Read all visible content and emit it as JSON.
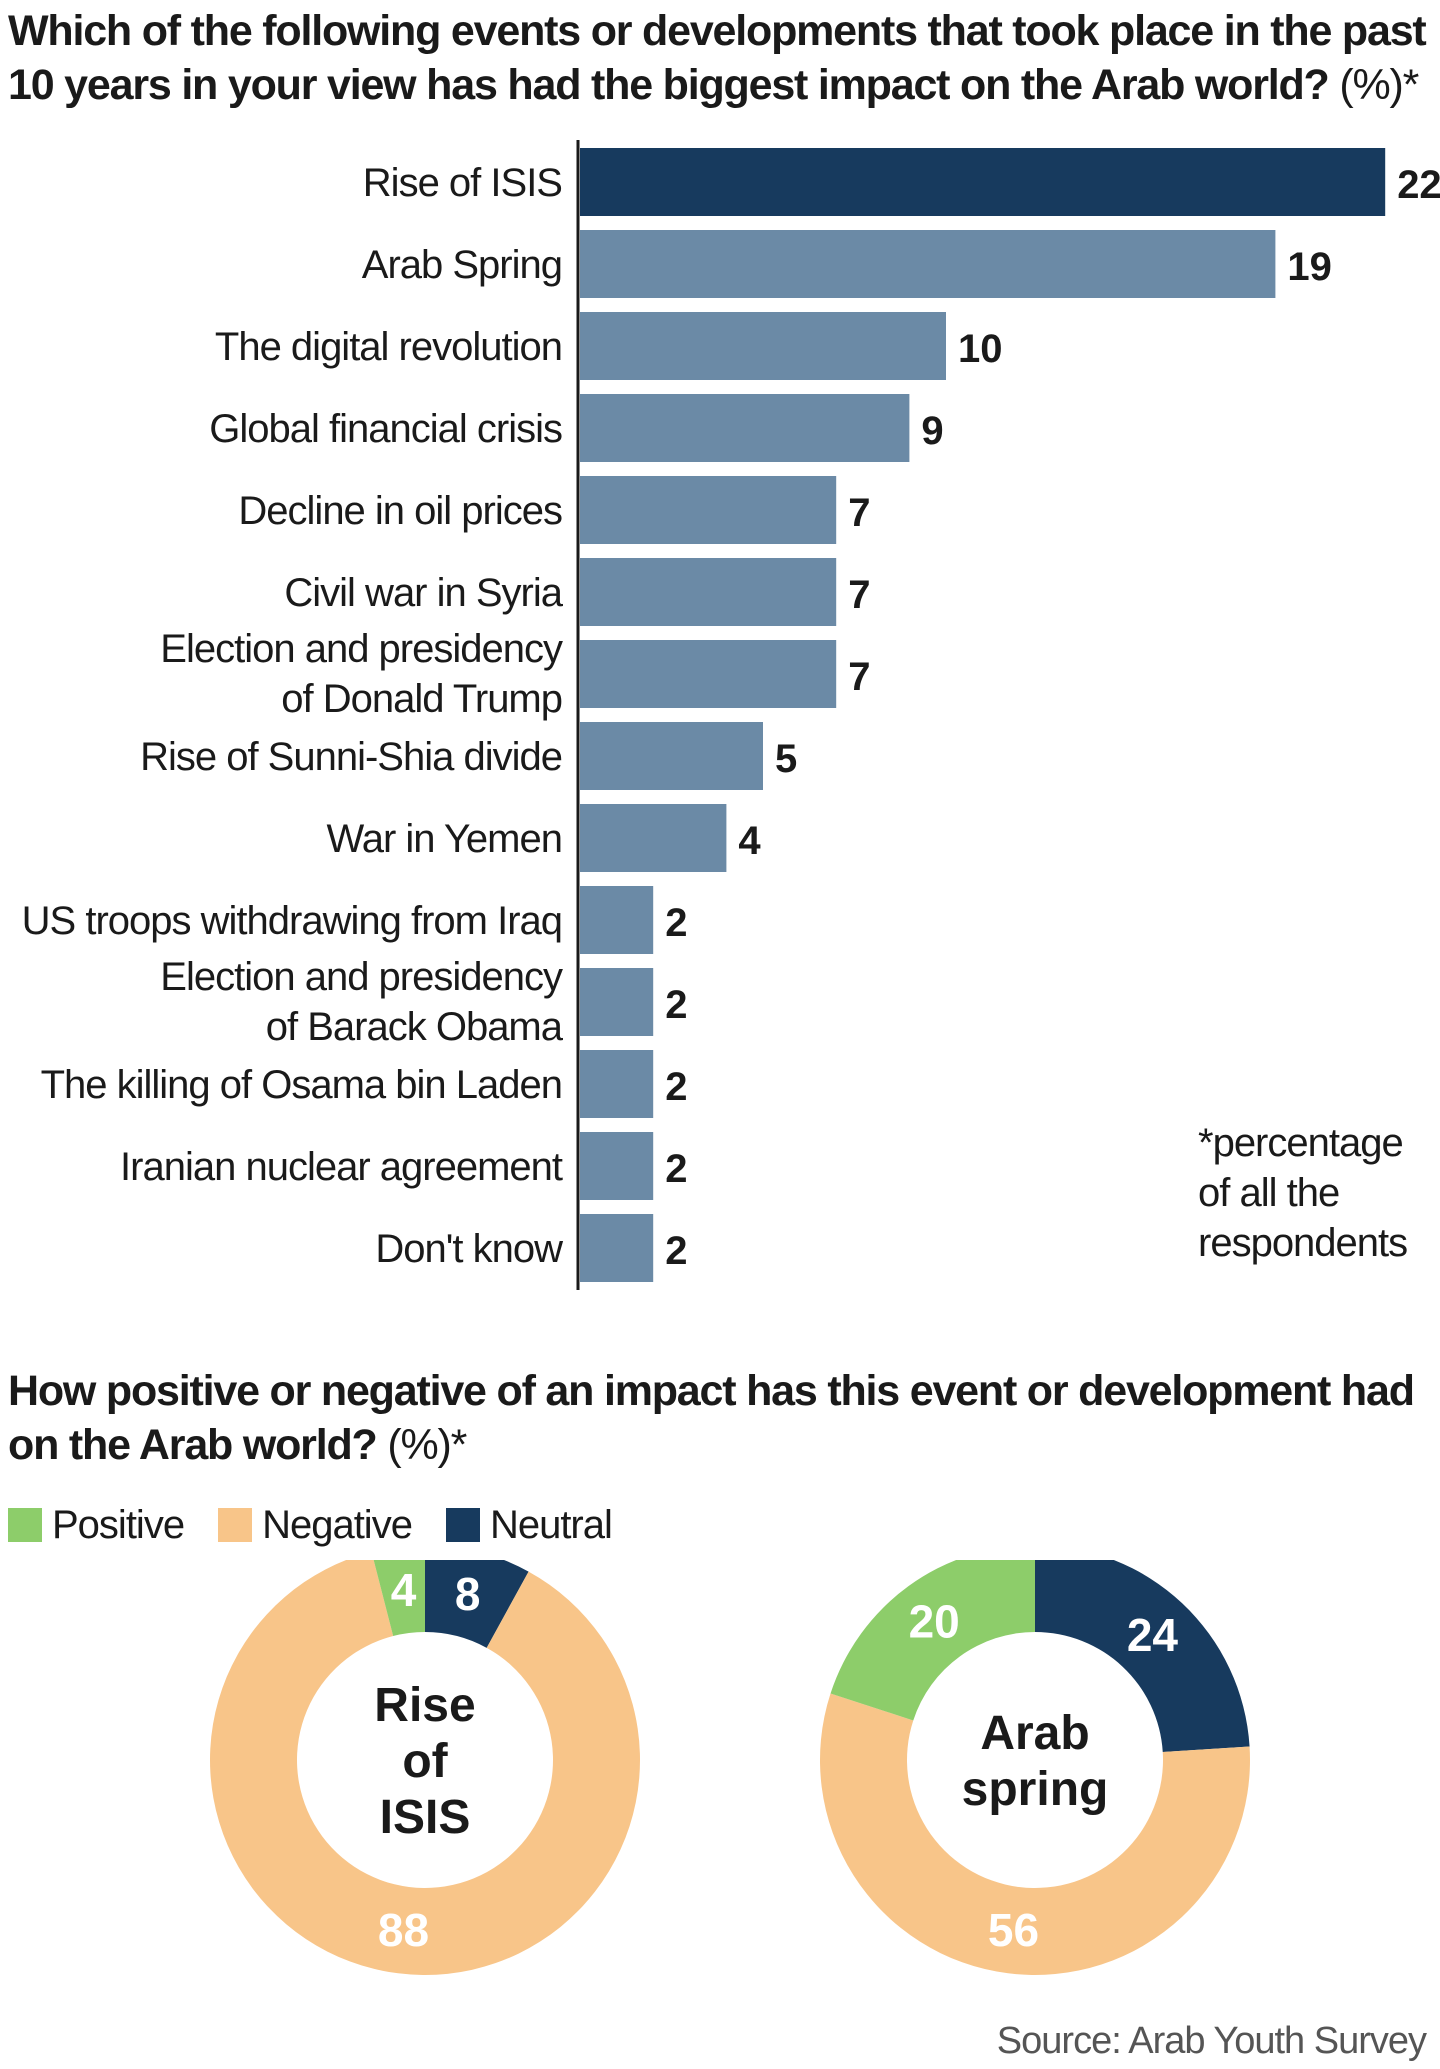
{
  "chart_data": [
    {
      "type": "bar",
      "orientation": "horizontal",
      "title": "Which of the following events or developments that took place in the past 10 years in your view has had the biggest impact on the Arab world?",
      "title_suffix": "(%)*",
      "categories": [
        [
          "Rise of ISIS"
        ],
        [
          "Arab Spring"
        ],
        [
          "The digital revolution"
        ],
        [
          "Global financial crisis"
        ],
        [
          "Decline in oil prices"
        ],
        [
          "Civil war in Syria"
        ],
        [
          "Election and presidency",
          "of Donald Trump"
        ],
        [
          "Rise of Sunni-Shia divide"
        ],
        [
          "War in Yemen"
        ],
        [
          "US troops withdrawing from Iraq"
        ],
        [
          "Election and presidency",
          "of Barack Obama"
        ],
        [
          "The killing of Osama bin Laden"
        ],
        [
          "Iranian nuclear agreement"
        ],
        [
          "Don't know"
        ]
      ],
      "values": [
        22,
        19,
        10,
        9,
        7,
        7,
        7,
        5,
        4,
        2,
        2,
        2,
        2,
        2
      ],
      "highlight_color": "#173a5e",
      "bar_color": "#6b8aa6",
      "footnote": "*percentage\nof all the\nrespondents"
    },
    {
      "type": "pie",
      "variant": "donut",
      "title": "How positive or negative of an impact has this event or development had on the Arab world?",
      "title_suffix": "(%)*",
      "legend": [
        {
          "name": "Positive",
          "color": "#8dcd6a"
        },
        {
          "name": "Negative",
          "color": "#f8c589"
        },
        {
          "name": "Neutral",
          "color": "#173a5e"
        }
      ],
      "donuts": [
        {
          "center_label": [
            "Rise",
            "of",
            "ISIS"
          ],
          "positive": 4,
          "negative": 88,
          "neutral": 8
        },
        {
          "center_label": [
            "Arab",
            "spring"
          ],
          "positive": 20,
          "negative": 56,
          "neutral": 24
        }
      ]
    }
  ],
  "source": "Source: Arab Youth Survey"
}
